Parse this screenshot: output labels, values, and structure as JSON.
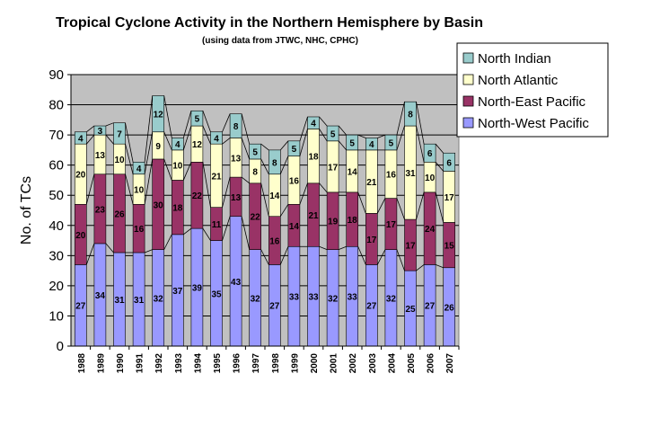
{
  "chart_data": {
    "type": "bar",
    "stacked": true,
    "title": "Tropical Cyclone Activity in the Northern Hemisphere by Basin",
    "subtitle": "(using data from JTWC, NHC, CPHC)",
    "xlabel": "",
    "ylabel": "No. of TCs",
    "ylim": [
      0,
      90
    ],
    "yticks": [
      0,
      10,
      20,
      30,
      40,
      50,
      60,
      70,
      80,
      90
    ],
    "grid": true,
    "legend_position": "top-right",
    "categories": [
      "1988",
      "1989",
      "1990",
      "1991",
      "1992",
      "1993",
      "1994",
      "1995",
      "1996",
      "1997",
      "1998",
      "1999",
      "2000",
      "2001",
      "2002",
      "2003",
      "2004",
      "2005",
      "2006",
      "2007"
    ],
    "series": [
      {
        "name": "North-West Pacific",
        "color": "#9999FF",
        "values": [
          27,
          34,
          31,
          31,
          32,
          37,
          39,
          35,
          43,
          32,
          27,
          33,
          33,
          32,
          33,
          27,
          32,
          25,
          27,
          26
        ]
      },
      {
        "name": "North-East Pacific",
        "color": "#993366",
        "values": [
          20,
          23,
          26,
          16,
          30,
          18,
          22,
          11,
          13,
          22,
          16,
          14,
          21,
          19,
          18,
          17,
          17,
          17,
          24,
          15
        ]
      },
      {
        "name": "North Atlantic",
        "color": "#FFFFCC",
        "values": [
          20,
          13,
          10,
          10,
          9,
          10,
          12,
          21,
          13,
          8,
          14,
          16,
          18,
          17,
          14,
          21,
          16,
          31,
          10,
          17
        ]
      },
      {
        "name": "North Indian",
        "color": "#99CCCC",
        "values": [
          4,
          3,
          7,
          4,
          12,
          4,
          5,
          4,
          8,
          5,
          8,
          5,
          4,
          5,
          5,
          4,
          5,
          8,
          6,
          6
        ]
      }
    ],
    "colors": {
      "plot_bg": "#C0C0C0",
      "gridline": "#000000",
      "border": "#808080"
    }
  }
}
